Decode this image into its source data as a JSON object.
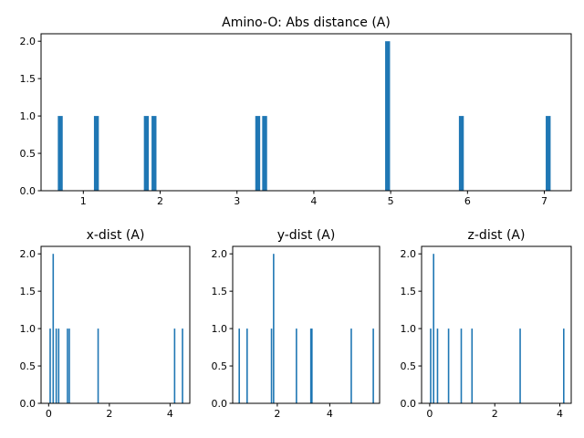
{
  "colors": {
    "bar": "#1f77b4",
    "axis": "#000000",
    "background": "#ffffff"
  },
  "chart_data": [
    {
      "type": "bar",
      "title": "Amino-O: Abs distance (A)",
      "xlabel": "",
      "ylabel": "",
      "xlim": [
        0.45,
        7.35
      ],
      "ylim": [
        0,
        2.1
      ],
      "xticks": [
        1,
        2,
        3,
        4,
        5,
        6,
        7
      ],
      "yticks": [
        0.0,
        0.5,
        1.0,
        1.5,
        2.0
      ],
      "xtick_labels": [
        "1",
        "2",
        "3",
        "4",
        "5",
        "6",
        "7"
      ],
      "ytick_labels": [
        "0.0",
        "0.5",
        "1.0",
        "1.5",
        "2.0"
      ],
      "bin_width": 0.064,
      "bars": [
        {
          "x": 0.7,
          "count": 1
        },
        {
          "x": 1.17,
          "count": 1
        },
        {
          "x": 1.82,
          "count": 1
        },
        {
          "x": 1.92,
          "count": 1
        },
        {
          "x": 3.27,
          "count": 1
        },
        {
          "x": 3.36,
          "count": 1
        },
        {
          "x": 4.96,
          "count": 2
        },
        {
          "x": 5.92,
          "count": 1
        },
        {
          "x": 7.05,
          "count": 1
        }
      ]
    },
    {
      "type": "bar",
      "title": "x-dist (A)",
      "xlabel": "",
      "ylabel": "",
      "xlim": [
        -0.25,
        4.65
      ],
      "ylim": [
        0,
        2.1
      ],
      "xticks": [
        0,
        2,
        4
      ],
      "yticks": [
        0.0,
        0.5,
        1.0,
        1.5,
        2.0
      ],
      "xtick_labels": [
        "0",
        "2",
        "4"
      ],
      "ytick_labels": [
        "0.0",
        "0.5",
        "1.0",
        "1.5",
        "2.0"
      ],
      "bin_width": 0.045,
      "bars": [
        {
          "x": 0.05,
          "count": 1
        },
        {
          "x": 0.15,
          "count": 2
        },
        {
          "x": 0.25,
          "count": 1
        },
        {
          "x": 0.33,
          "count": 1
        },
        {
          "x": 0.62,
          "count": 1
        },
        {
          "x": 0.68,
          "count": 1
        },
        {
          "x": 1.63,
          "count": 1
        },
        {
          "x": 4.15,
          "count": 1
        },
        {
          "x": 4.41,
          "count": 1
        }
      ]
    },
    {
      "type": "bar",
      "title": "y-dist (A)",
      "xlabel": "",
      "ylabel": "",
      "xlim": [
        0.3,
        5.9
      ],
      "ylim": [
        0,
        2.1
      ],
      "xticks": [
        2,
        4
      ],
      "yticks": [
        0.0,
        0.5,
        1.0,
        1.5,
        2.0
      ],
      "xtick_labels": [
        "2",
        "4"
      ],
      "ytick_labels": [
        "0.0",
        "0.5",
        "1.0",
        "1.5",
        "2.0"
      ],
      "bin_width": 0.05,
      "bars": [
        {
          "x": 0.55,
          "count": 1
        },
        {
          "x": 0.85,
          "count": 1
        },
        {
          "x": 1.78,
          "count": 1
        },
        {
          "x": 1.86,
          "count": 2
        },
        {
          "x": 2.73,
          "count": 1
        },
        {
          "x": 3.28,
          "count": 1
        },
        {
          "x": 3.32,
          "count": 1
        },
        {
          "x": 4.82,
          "count": 1
        },
        {
          "x": 5.66,
          "count": 1
        }
      ]
    },
    {
      "type": "bar",
      "title": "z-dist (A)",
      "xlabel": "",
      "ylabel": "",
      "xlim": [
        -0.25,
        4.35
      ],
      "ylim": [
        0,
        2.1
      ],
      "xticks": [
        0,
        2,
        4
      ],
      "yticks": [
        0.0,
        0.5,
        1.0,
        1.5,
        2.0
      ],
      "xtick_labels": [
        "0",
        "2",
        "4"
      ],
      "ytick_labels": [
        "0.0",
        "0.5",
        "1.0",
        "1.5",
        "2.0"
      ],
      "bin_width": 0.04,
      "bars": [
        {
          "x": 0.03,
          "count": 1
        },
        {
          "x": 0.12,
          "count": 2
        },
        {
          "x": 0.24,
          "count": 1
        },
        {
          "x": 0.58,
          "count": 1
        },
        {
          "x": 0.97,
          "count": 1
        },
        {
          "x": 1.3,
          "count": 1
        },
        {
          "x": 2.78,
          "count": 1
        },
        {
          "x": 4.12,
          "count": 1
        }
      ]
    }
  ]
}
